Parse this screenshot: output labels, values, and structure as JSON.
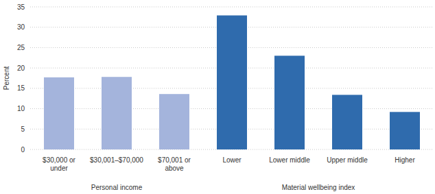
{
  "chart_data": {
    "type": "bar",
    "y_label": "Percent",
    "categories": [
      "$30,000 or under",
      "$30,001–$70,000",
      "$70,001 or above",
      "Lower",
      "Lower middle",
      "Upper middle",
      "Higher"
    ],
    "series": [
      {
        "name": "Personal income",
        "color": "#a4b4dc",
        "values": [
          17.7,
          17.8,
          13.6,
          null,
          null,
          null,
          null
        ]
      },
      {
        "name": "Material wellbeing index",
        "color": "#2f6bad",
        "values": [
          null,
          null,
          null,
          32.9,
          23.0,
          13.4,
          9.2
        ]
      }
    ],
    "ylim": [
      0,
      35
    ],
    "yticks": [
      0,
      5,
      10,
      15,
      20,
      25,
      30,
      35
    ],
    "grid": true
  }
}
